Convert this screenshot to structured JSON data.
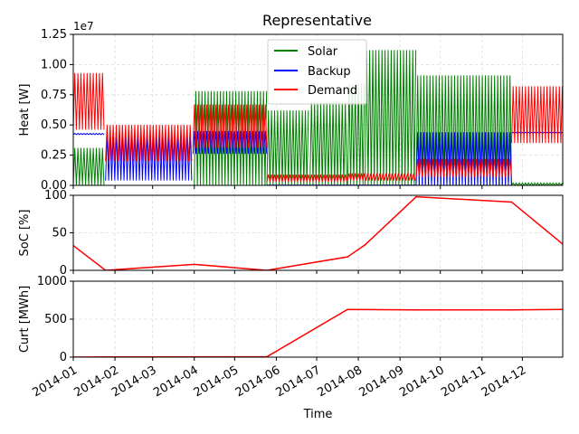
{
  "title": "Representative",
  "colors": {
    "solar": "#008000",
    "backup": "#0000ff",
    "demand": "#ff0000",
    "grid": "#d9d9d9"
  },
  "chart_data": [
    {
      "type": "line",
      "title": "Representative",
      "ylabel": "Heat [W]",
      "offset_label": "1e7",
      "ylim": [
        0,
        12500000
      ],
      "yticks": [
        {
          "value": 0,
          "label": "0.00"
        },
        {
          "value": 2500000,
          "label": "0.25"
        },
        {
          "value": 5000000,
          "label": "0.50"
        },
        {
          "value": 7500000,
          "label": "0.75"
        },
        {
          "value": 10000000,
          "label": "1.00"
        },
        {
          "value": 12500000,
          "label": "1.25"
        }
      ],
      "grid": true,
      "legend": "top-center",
      "series": [
        {
          "name": "Solar",
          "color": "#008000",
          "segments": [
            {
              "start": "2014-01-01",
              "end": "2014-01-25",
              "low": 0,
              "high": 3100000
            },
            {
              "start": "2014-04-01",
              "end": "2014-05-25",
              "low": 0,
              "high": 7800000
            },
            {
              "start": "2014-05-25",
              "end": "2014-06-26",
              "low": 0,
              "high": 6200000
            },
            {
              "start": "2014-06-26",
              "end": "2014-07-24",
              "low": 0,
              "high": 6900000
            },
            {
              "start": "2014-07-24",
              "end": "2014-08-06",
              "low": 0,
              "high": 8400000
            },
            {
              "start": "2014-08-06",
              "end": "2014-09-13",
              "low": 0,
              "high": 11200000
            },
            {
              "start": "2014-09-13",
              "end": "2014-11-23",
              "low": 0,
              "high": 9100000
            },
            {
              "start": "2014-11-23",
              "end": "2014-12-31",
              "low": 0,
              "high": 200000
            }
          ]
        },
        {
          "name": "Backup",
          "color": "#0000ff",
          "segments": [
            {
              "start": "2014-01-01",
              "end": "2014-01-25",
              "low": 4200000,
              "high": 4300000
            },
            {
              "start": "2014-01-25",
              "end": "2014-03-31",
              "low": 400000,
              "high": 4400000
            },
            {
              "start": "2014-03-31",
              "end": "2014-05-25",
              "low": 2600000,
              "high": 4500000
            },
            {
              "start": "2014-05-25",
              "end": "2014-09-13",
              "low": 0,
              "high": 0
            },
            {
              "start": "2014-09-13",
              "end": "2014-11-23",
              "low": 0,
              "high": 4400000
            },
            {
              "start": "2014-11-23",
              "end": "2014-12-31",
              "low": 4300000,
              "high": 4400000
            }
          ]
        },
        {
          "name": "Demand",
          "color": "#ff0000",
          "segments": [
            {
              "start": "2014-01-01",
              "end": "2014-01-25",
              "low": 4600000,
              "high": 9300000
            },
            {
              "start": "2014-01-25",
              "end": "2014-03-31",
              "low": 2000000,
              "high": 5000000
            },
            {
              "start": "2014-03-31",
              "end": "2014-05-25",
              "low": 3100000,
              "high": 6700000
            },
            {
              "start": "2014-05-25",
              "end": "2014-07-24",
              "low": 300000,
              "high": 900000
            },
            {
              "start": "2014-07-24",
              "end": "2014-09-13",
              "low": 400000,
              "high": 1000000
            },
            {
              "start": "2014-09-13",
              "end": "2014-11-23",
              "low": 700000,
              "high": 2200000
            },
            {
              "start": "2014-11-23",
              "end": "2014-12-31",
              "low": 3500000,
              "high": 8200000
            }
          ]
        }
      ]
    },
    {
      "type": "line",
      "ylabel": "SoC [%]",
      "ylim": [
        0,
        100
      ],
      "yticks": [
        {
          "value": 0,
          "label": "0"
        },
        {
          "value": 50,
          "label": "50"
        },
        {
          "value": 100,
          "label": "100"
        }
      ],
      "grid": true,
      "series": [
        {
          "color": "#ff0000",
          "x": [
            "2014-01-01",
            "2014-01-25",
            "2014-04-01",
            "2014-05-25",
            "2014-07-24",
            "2014-08-06",
            "2014-09-13",
            "2014-11-23",
            "2014-12-31"
          ],
          "y": [
            33,
            0,
            8,
            0,
            18,
            34,
            98,
            91,
            35
          ]
        }
      ]
    },
    {
      "type": "line",
      "ylabel": "Curt [MWh]",
      "ylim": [
        0,
        1000
      ],
      "yticks": [
        {
          "value": 0,
          "label": "0"
        },
        {
          "value": 500,
          "label": "500"
        },
        {
          "value": 1000,
          "label": "1000"
        }
      ],
      "grid": true,
      "xlabel": "Time",
      "xlim": [
        "2014-01-01",
        "2014-12-31"
      ],
      "xticks": [
        "2014-01-01",
        "2014-02-01",
        "2014-03-01",
        "2014-04-01",
        "2014-05-01",
        "2014-06-01",
        "2014-07-01",
        "2014-08-01",
        "2014-09-01",
        "2014-10-01",
        "2014-11-01",
        "2014-12-01"
      ],
      "xticklabels": [
        "2014-01",
        "2014-02",
        "2014-03",
        "2014-04",
        "2014-05",
        "2014-06",
        "2014-07",
        "2014-08",
        "2014-09",
        "2014-10",
        "2014-11",
        "2014-12"
      ],
      "series": [
        {
          "color": "#ff0000",
          "x": [
            "2014-01-01",
            "2014-01-25",
            "2014-05-25",
            "2014-07-24",
            "2014-09-13",
            "2014-11-23",
            "2014-12-31"
          ],
          "y": [
            0,
            3,
            5,
            628,
            622,
            622,
            628
          ]
        }
      ]
    }
  ]
}
